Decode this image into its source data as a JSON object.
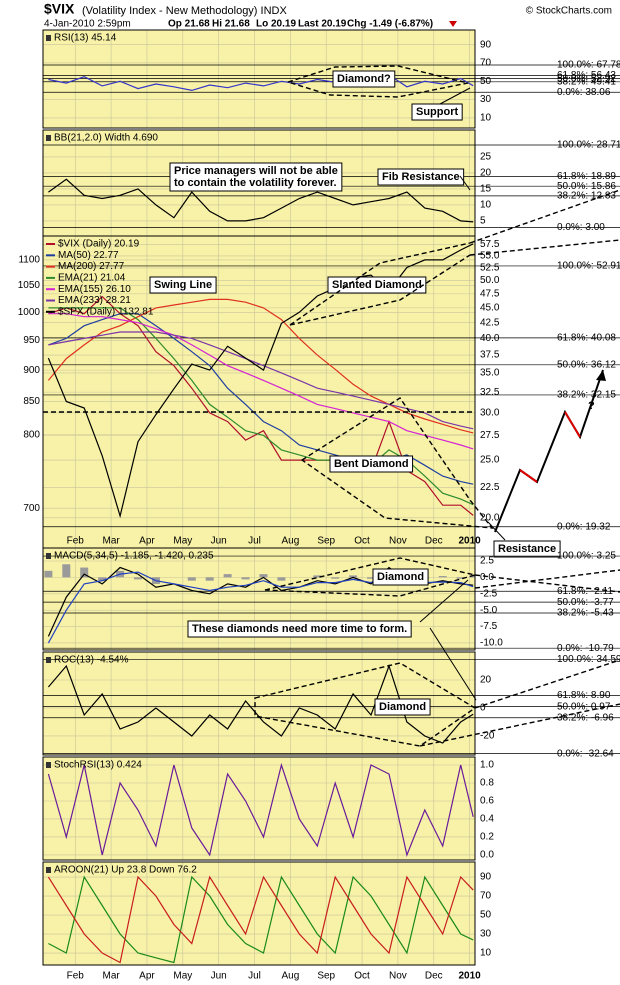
{
  "chart_data": {
    "type": "stock",
    "title": "$VIX",
    "subtitle": "(Volatility Index - New Methodology) INDX",
    "source": "© StockCharts.com",
    "info": [
      "4-Jan-2010 2:59pm",
      "Op 21.68",
      "Hi 21.68",
      "Lo 20.19",
      "Last 20.19",
      "Chg -1.49 (-6.87%)"
    ],
    "background": "#f7f2a8",
    "x": [
      0.25,
      0.75,
      1.25,
      1.75,
      2.25,
      2.75,
      3.25,
      3.75,
      4.25,
      4.75,
      5.25,
      5.75,
      6.25,
      6.75,
      7.25,
      7.75,
      8.25,
      8.75,
      9.25,
      9.75,
      10.25,
      10.75,
      11.25,
      11.75,
      12.1
    ],
    "xlim": [
      0.1,
      12.15
    ],
    "xticks": [
      {
        "value": 1,
        "label": "Feb"
      },
      {
        "value": 2,
        "label": "Mar"
      },
      {
        "value": 3,
        "label": "Apr"
      },
      {
        "value": 4,
        "label": "May"
      },
      {
        "value": 5,
        "label": "Jun"
      },
      {
        "value": 6,
        "label": "Jul"
      },
      {
        "value": 7,
        "label": "Aug"
      },
      {
        "value": 8,
        "label": "Sep"
      },
      {
        "value": 9,
        "label": "Oct"
      },
      {
        "value": 10,
        "label": "Nov"
      },
      {
        "value": 11,
        "label": "Dec"
      },
      {
        "value": 12,
        "label": "2010"
      }
    ],
    "panels": [
      {
        "type": "line",
        "title": "RSI(13) 45.14",
        "ylim": [
          -1,
          106
        ],
        "yticks": [
          90,
          70,
          50,
          30,
          10
        ],
        "grid": true,
        "series": [
          {
            "color": "#3535c8",
            "values": [
              52,
              48,
              55,
              45,
              50,
              42,
              47,
              44,
              40,
              46,
              43,
              48,
              45,
              50,
              47,
              52,
              49,
              55,
              51,
              57,
              44,
              50,
              47,
              53,
              45.14
            ]
          }
        ],
        "fib": [
          {
            "value": 67.78,
            "label": "100.0%: 67.78"
          },
          {
            "value": 56.43,
            "label": "61.8%: 56.43"
          },
          {
            "value": 52.92,
            "label": "50.0%: 52.92"
          },
          {
            "value": 49.41,
            "label": "38.2%: 49.41"
          },
          {
            "value": 38.06,
            "label": "0.0%: 38.06"
          }
        ],
        "annotations": [
          [
            "Diamond?"
          ],
          [
            "Support"
          ]
        ]
      },
      {
        "type": "line",
        "title": "BB(21,2.0) Width 4.690",
        "ylim": [
          0.3,
          33.4
        ],
        "yticks": [
          25,
          20,
          15,
          10,
          5
        ],
        "grid": true,
        "series": [
          {
            "color": "#000000",
            "values": [
              14,
              18,
              13,
              12,
              13,
              15,
              10,
              6,
              14,
              8,
              5,
              5,
              6,
              9,
              12,
              14,
              12,
              10,
              11,
              12,
              14,
              9,
              8,
              5,
              4.69
            ]
          }
        ],
        "fib": [
          {
            "value": 28.71,
            "label": "100.0%: 28.71"
          },
          {
            "value": 18.89,
            "label": "61.8%: 18.89"
          },
          {
            "value": 15.86,
            "label": "50.0%: 15.86"
          },
          {
            "value": 12.83,
            "label": "38.2%: 12.83"
          },
          {
            "value": 3.0,
            "label": "0.0%: 3.00"
          }
        ],
        "annotations": [
          [
            "Price managers will not be able",
            "to contain the volatility forever."
          ],
          [
            "Fib Resistance"
          ]
        ]
      },
      {
        "type": "line",
        "log": true,
        "y_axis_side": "left",
        "ylim": [
          651,
          1149
        ],
        "yticks": [
          1100,
          1050,
          1000,
          950,
          900,
          850,
          800,
          700
        ],
        "y2lim": [
          17.8,
          59.4
        ],
        "y2ticks": [
          57.5,
          {
            "value": 55,
            "label": "55.0"
          },
          52.5,
          {
            "value": 50,
            "label": "50.0"
          },
          47.5,
          {
            "value": 45,
            "label": "45.0"
          },
          42.5,
          {
            "value": 40,
            "label": "40.0"
          },
          37.5,
          {
            "value": 35,
            "label": "35.0"
          },
          32.5,
          {
            "value": 30,
            "label": "30.0"
          },
          27.5,
          {
            "value": 25,
            "label": "25.0"
          },
          22.5,
          {
            "value": 20,
            "label": "20.0"
          }
        ],
        "grid": true,
        "series": [
          {
            "name": "$VIX (Daily) 20.19",
            "color": "#b0102a",
            "axis": "y2",
            "values": [
              44,
              45,
              44,
              47,
              44,
              42,
              38,
              36,
              33,
              30,
              29,
              27,
              28,
              25,
              25,
              25,
              25,
              25,
              24,
              29,
              24,
              23,
              21,
              21,
              20.19
            ]
          },
          {
            "name": "MA(50) 22.77",
            "color": "#1f3fa0",
            "axis": "y2",
            "values": [
              39,
              40,
              42,
              43,
              44,
              44,
              42,
              40,
              38,
              36,
              33,
              31,
              29,
              28,
              26.5,
              26,
              25.5,
              25,
              25,
              25,
              25.5,
              24.5,
              23.5,
              23,
              22.77
            ]
          },
          {
            "name": "MA(200) 27.77",
            "color": "#e0301e",
            "axis": "y2",
            "values": [
              34,
              37,
              39,
              41,
              42,
              43.5,
              45,
              45.5,
              46,
              46.5,
              46.5,
              46,
              45,
              43,
              40,
              37.5,
              35.5,
              33.5,
              32,
              31,
              30,
              29.3,
              28.7,
              28.1,
              27.77
            ]
          },
          {
            "name": "EMA(21) 21.04",
            "color": "#2e8b2e",
            "axis": "y2",
            "values": [
              45,
              45,
              45,
              45,
              45,
              43,
              40,
              37,
              34,
              31,
              29.5,
              28,
              27.5,
              26,
              25.5,
              25,
              25,
              25,
              24.5,
              26,
              25,
              23.5,
              22,
              21.5,
              21.04
            ]
          },
          {
            "name": "EMA(155) 26.10",
            "color": "#d422d4",
            "axis": "y2",
            "values": [
              44,
              44,
              43.5,
              43.5,
              43,
              42.5,
              41.5,
              40.5,
              39,
              37.5,
              36,
              35,
              34,
              33,
              32,
              31,
              30.5,
              30,
              29.5,
              29,
              28,
              27.5,
              27,
              26.5,
              26.1
            ]
          },
          {
            "name": "EMA(233) 28.21",
            "color": "#7a35a8",
            "axis": "y2",
            "values": [
              39,
              39.5,
              40,
              40.5,
              41,
              41,
              41,
              40.5,
              40,
              39,
              38,
              37,
              36,
              35,
              34,
              33,
              32.5,
              32,
              31.5,
              31,
              30.5,
              30,
              29,
              28.5,
              28.21
            ]
          },
          {
            "name": "$SPX (Daily) 1132.81",
            "color": "#000000",
            "values": [
              920,
              850,
              840,
              770,
              690,
              790,
              830,
              870,
              910,
              900,
              940,
              920,
              900,
              980,
              1000,
              1030,
              1045,
              1065,
              1070,
              1040,
              1085,
              1100,
              1100,
              1120,
              1132.81
            ]
          }
        ],
        "fib": [
          {
            "value": 52.91,
            "label": "100.0%: 52.91"
          },
          {
            "value": 40.08,
            "label": "61.8%: 40.08"
          },
          {
            "value": 36.12,
            "label": "50.0%: 36.12"
          },
          {
            "value": 32.15,
            "label": "38.2%: 32.15"
          },
          {
            "value": 19.32,
            "label": "0.0%: 19.32"
          }
        ],
        "annotations": [
          [
            "Swing Line"
          ],
          [
            "Slanted Diamond"
          ],
          [
            "Bent Diamond"
          ],
          [
            "Resistance"
          ],
          [
            "?"
          ]
        ]
      },
      {
        "type": "line",
        "title": "MACD(5,34,5) -1.185, -1.420, 0.235",
        "ylim": [
          -11.07,
          4.48
        ],
        "yticks": [
          2.5,
          {
            "value": 0,
            "label": "0.0"
          },
          -2.5,
          {
            "value": -5,
            "label": "-5.0"
          },
          -7.5,
          {
            "value": -10,
            "label": "-10.0"
          }
        ],
        "grid": true,
        "series": [
          {
            "color": "#9a9a9a",
            "style": "histogram",
            "values": [
              1,
              2,
              1.5,
              -0.5,
              1,
              -0.3,
              -1,
              0,
              -0.5,
              -0.5,
              0.5,
              -0.3,
              0.5,
              -0.5,
              0,
              0.3,
              -0.2,
              0.3,
              -0.2,
              0.7,
              -0.5,
              -0.2,
              0.2,
              -0.2,
              0.235
            ]
          },
          {
            "color": "#000000",
            "values": [
              -9,
              -3,
              0.5,
              -1,
              1.5,
              0.5,
              -1.5,
              -1,
              -2,
              -2.5,
              -1,
              -1.5,
              0,
              -2,
              -1.5,
              -0.5,
              -1,
              0,
              -1,
              1.5,
              -0.5,
              -1,
              -0.5,
              -1,
              -1.185
            ]
          },
          {
            "color": "#2040c0",
            "values": [
              -10,
              -5,
              -1,
              -0.5,
              0.5,
              0.8,
              -0.5,
              -1,
              -1.5,
              -2,
              -1.5,
              -1.2,
              -0.5,
              -1.5,
              -1.5,
              -0.8,
              -0.8,
              -0.3,
              -0.8,
              0.8,
              0,
              -0.8,
              -0.7,
              -0.8,
              -1.42
            ]
          }
        ],
        "fib": [
          {
            "value": 3.25,
            "label": "100.0%: 3.25"
          },
          {
            "value": -2.11,
            "label": "61.8%: -2.11"
          },
          {
            "value": -3.77,
            "label": "50.0%: -3.77"
          },
          {
            "value": -5.43,
            "label": "38.2%: -5.43"
          },
          {
            "value": -10.79,
            "label": "0.0%: -10.79"
          }
        ],
        "annotations": [
          [
            "Diamond"
          ],
          [
            "These diamonds need more time to form."
          ]
        ]
      },
      {
        "type": "line",
        "title": "ROC(13) -4.54%",
        "ylim": [
          -33.6,
          40
        ],
        "yticks": [
          20,
          0,
          -20
        ],
        "grid": true,
        "series": [
          {
            "color": "#000000",
            "values": [
              15,
              30,
              -5,
              10,
              -15,
              -10,
              0,
              -10,
              -20,
              -5,
              -15,
              5,
              -10,
              -20,
              0,
              -5,
              -15,
              10,
              -5,
              30,
              -10,
              -20,
              -25,
              -10,
              -4.54
            ]
          }
        ],
        "fib": [
          {
            "value": 34.59,
            "label": "100.0%: 34.59"
          },
          {
            "value": 8.9,
            "label": "61.8%: 8.90"
          },
          {
            "value": 0.97,
            "label": "50.0%: 0.97"
          },
          {
            "value": -6.96,
            "label": "38.2%: -6.96"
          },
          {
            "value": -32.64,
            "label": "0.0%: -32.64"
          }
        ],
        "annotations": [
          [
            "Diamond"
          ]
        ]
      },
      {
        "type": "line",
        "title": "StochRSI(13) 0.424",
        "ylim": [
          -0.056,
          1.089
        ],
        "yticks": [
          {
            "value": 1,
            "label": "1.0"
          },
          0.8,
          0.6,
          0.4,
          0.2,
          {
            "value": 0,
            "label": "0.0"
          }
        ],
        "grid": true,
        "series": [
          {
            "color": "#6a1b9a",
            "values": [
              0.9,
              0.2,
              1,
              0,
              0.8,
              0.5,
              0.1,
              1,
              0.3,
              0,
              0.9,
              0.6,
              0.2,
              1,
              0.4,
              0.1,
              0.8,
              0.2,
              1,
              0.9,
              0,
              0.5,
              0.1,
              1,
              0.424
            ]
          }
        ]
      },
      {
        "type": "line",
        "title": "AROON(21) Up 23.8 Down 76.2",
        "ylim": [
          -2.6,
          105.8
        ],
        "yticks": [
          90,
          70,
          50,
          30,
          10
        ],
        "grid": true,
        "series": [
          {
            "color": "#1a8a1a",
            "values": [
              20,
              10,
              90,
              60,
              30,
              10,
              5,
              0,
              90,
              70,
              40,
              20,
              10,
              90,
              60,
              30,
              10,
              90,
              70,
              40,
              10,
              90,
              60,
              30,
              23.8
            ]
          },
          {
            "color": "#c81e1e",
            "values": [
              90,
              60,
              30,
              10,
              0,
              90,
              70,
              40,
              20,
              90,
              60,
              30,
              90,
              60,
              30,
              10,
              90,
              60,
              30,
              10,
              90,
              60,
              30,
              90,
              76.2
            ]
          }
        ]
      }
    ]
  }
}
